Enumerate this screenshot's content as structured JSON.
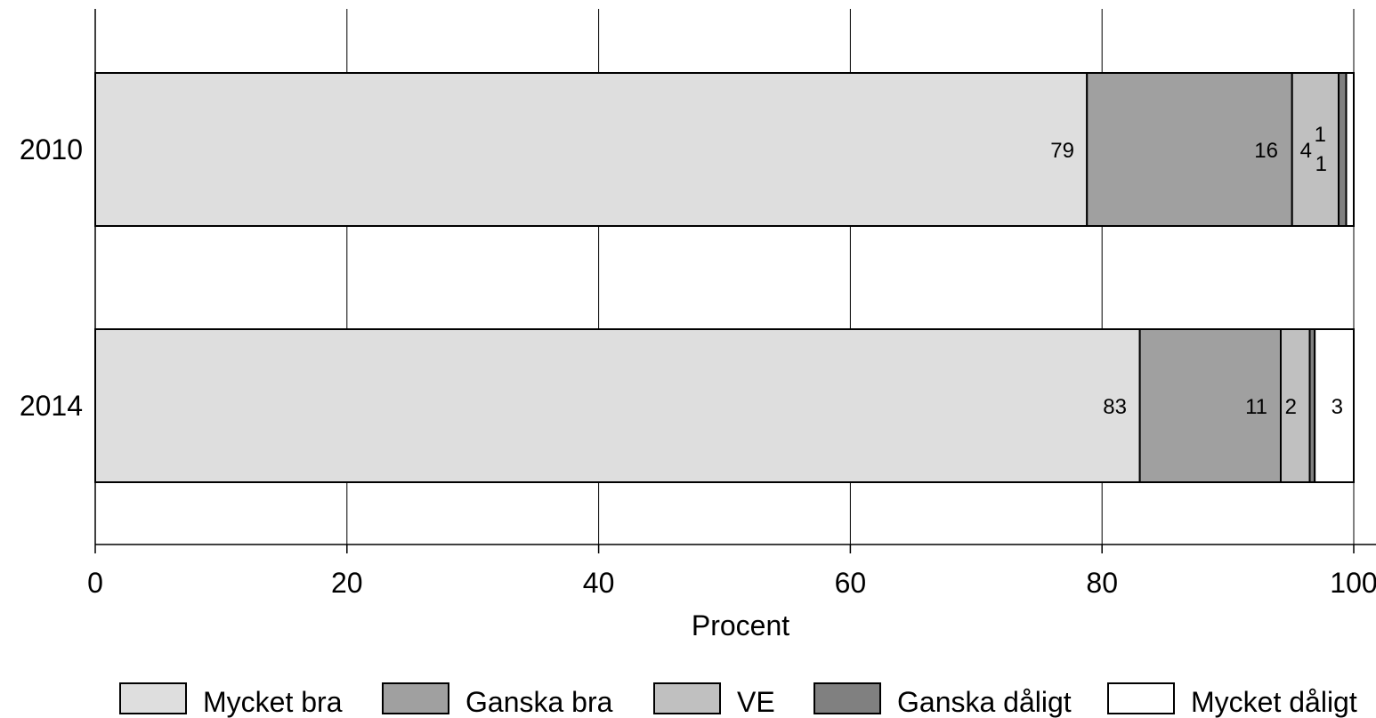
{
  "chart_data": {
    "type": "bar",
    "orientation": "horizontal",
    "stacked": true,
    "title": "",
    "xlabel": "Procent",
    "ylabel": "",
    "xlim": [
      0,
      100
    ],
    "xticks": [
      0,
      20,
      40,
      60,
      80,
      100
    ],
    "grid": true,
    "legend_position": "bottom",
    "categories": [
      "2010",
      "2014"
    ],
    "series": [
      {
        "name": "Mycket bra",
        "color": "#dedede",
        "values": [
          78.8,
          83.0
        ],
        "labels": [
          "79",
          "83"
        ]
      },
      {
        "name": "Ganska bra",
        "color": "#a0a0a0",
        "values": [
          16.3,
          11.2
        ],
        "labels": [
          "16",
          "11"
        ]
      },
      {
        "name": "VE",
        "color": "#c0c0c0",
        "values": [
          3.7,
          2.3
        ],
        "labels": [
          "4",
          "2"
        ]
      },
      {
        "name": "Ganska dåligt",
        "color": "#808080",
        "values": [
          0.6,
          0.4
        ],
        "labels": [
          "1",
          ""
        ]
      },
      {
        "name": "Mycket dåligt",
        "color": "#ffffff",
        "values": [
          0.6,
          3.1
        ],
        "labels": [
          "1",
          "3"
        ]
      }
    ]
  }
}
